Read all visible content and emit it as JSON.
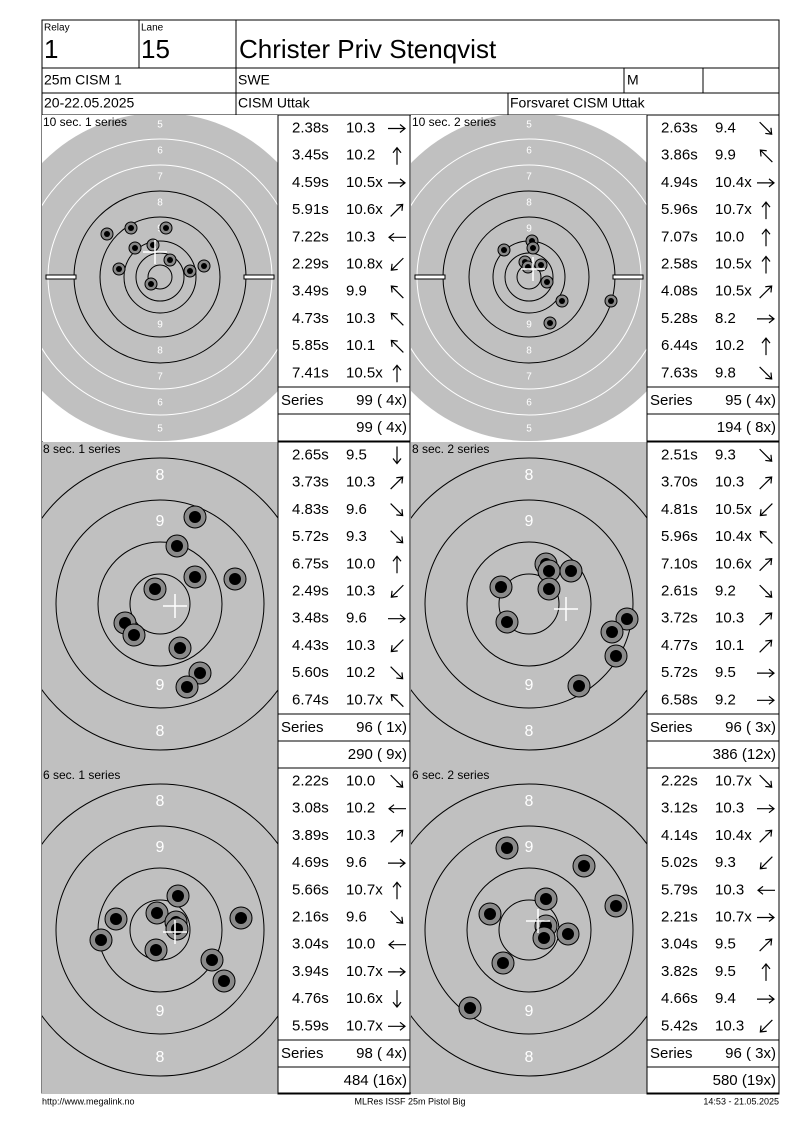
{
  "header": {
    "relay_label": "Relay",
    "relay": "1",
    "lane_label": "Lane",
    "lane": "15",
    "name": "Christer Priv Stenqvist",
    "event": "25m CISM 1",
    "nation": "SWE",
    "gender": "M",
    "dates": "20-22.05.2025",
    "competition": "CISM Uttak",
    "organizer": "Forsvaret CISM Uttak"
  },
  "target": {
    "ring_labels": [
      "8",
      "9"
    ],
    "precision_ring_labels": [
      "5",
      "6",
      "7",
      "8",
      "9"
    ]
  },
  "series": [
    {
      "title": "10 sec. 1 series",
      "shots": [
        {
          "time": "2.38s",
          "score": "10.3"
        },
        {
          "time": "3.45s",
          "score": "10.2"
        },
        {
          "time": "4.59s",
          "score": "10.5x"
        },
        {
          "time": "5.91s",
          "score": "10.6x"
        },
        {
          "time": "7.22s",
          "score": "10.3"
        },
        {
          "time": "2.29s",
          "score": "10.8x"
        },
        {
          "time": "3.49s",
          "score": "9.9"
        },
        {
          "time": "4.73s",
          "score": "10.3"
        },
        {
          "time": "5.85s",
          "score": "10.1"
        },
        {
          "time": "7.41s",
          "score": "10.5x"
        }
      ],
      "series_label": "Series",
      "series_total": "99 ( 4x)",
      "running_total": "99 ( 4x)"
    },
    {
      "title": "10 sec. 2 series",
      "shots": [
        {
          "time": "2.63s",
          "score": "9.4"
        },
        {
          "time": "3.86s",
          "score": "9.9"
        },
        {
          "time": "4.94s",
          "score": "10.4x"
        },
        {
          "time": "5.96s",
          "score": "10.7x"
        },
        {
          "time": "7.07s",
          "score": "10.0"
        },
        {
          "time": "2.58s",
          "score": "10.5x"
        },
        {
          "time": "4.08s",
          "score": "10.5x"
        },
        {
          "time": "5.28s",
          "score": "8.2"
        },
        {
          "time": "6.44s",
          "score": "10.2"
        },
        {
          "time": "7.63s",
          "score": "9.8"
        }
      ],
      "series_label": "Series",
      "series_total": "95 ( 4x)",
      "running_total": "194 ( 8x)"
    },
    {
      "title": "8 sec. 1 series",
      "shots": [
        {
          "time": "2.65s",
          "score": "9.5"
        },
        {
          "time": "3.73s",
          "score": "10.3"
        },
        {
          "time": "4.83s",
          "score": "9.6"
        },
        {
          "time": "5.72s",
          "score": "9.3"
        },
        {
          "time": "6.75s",
          "score": "10.0"
        },
        {
          "time": "2.49s",
          "score": "10.3"
        },
        {
          "time": "3.48s",
          "score": "9.6"
        },
        {
          "time": "4.43s",
          "score": "10.3"
        },
        {
          "time": "5.60s",
          "score": "10.2"
        },
        {
          "time": "6.74s",
          "score": "10.7x"
        }
      ],
      "series_label": "Series",
      "series_total": "96 ( 1x)",
      "running_total": "290 ( 9x)"
    },
    {
      "title": "8 sec. 2 series",
      "shots": [
        {
          "time": "2.51s",
          "score": "9.3"
        },
        {
          "time": "3.70s",
          "score": "10.3"
        },
        {
          "time": "4.81s",
          "score": "10.5x"
        },
        {
          "time": "5.96s",
          "score": "10.4x"
        },
        {
          "time": "7.10s",
          "score": "10.6x"
        },
        {
          "time": "2.61s",
          "score": "9.2"
        },
        {
          "time": "3.72s",
          "score": "10.3"
        },
        {
          "time": "4.77s",
          "score": "10.1"
        },
        {
          "time": "5.72s",
          "score": "9.5"
        },
        {
          "time": "6.58s",
          "score": "9.2"
        }
      ],
      "series_label": "Series",
      "series_total": "96 ( 3x)",
      "running_total": "386 (12x)"
    },
    {
      "title": "6 sec. 1 series",
      "shots": [
        {
          "time": "2.22s",
          "score": "10.0"
        },
        {
          "time": "3.08s",
          "score": "10.2"
        },
        {
          "time": "3.89s",
          "score": "10.3"
        },
        {
          "time": "4.69s",
          "score": "9.6"
        },
        {
          "time": "5.66s",
          "score": "10.7x"
        },
        {
          "time": "2.16s",
          "score": "9.6"
        },
        {
          "time": "3.04s",
          "score": "10.0"
        },
        {
          "time": "3.94s",
          "score": "10.7x"
        },
        {
          "time": "4.76s",
          "score": "10.6x"
        },
        {
          "time": "5.59s",
          "score": "10.7x"
        }
      ],
      "series_label": "Series",
      "series_total": "98 ( 4x)",
      "running_total": "484 (16x)"
    },
    {
      "title": "6 sec. 2 series",
      "shots": [
        {
          "time": "2.22s",
          "score": "10.7x"
        },
        {
          "time": "3.12s",
          "score": "10.3"
        },
        {
          "time": "4.14s",
          "score": "10.4x"
        },
        {
          "time": "5.02s",
          "score": "9.3"
        },
        {
          "time": "5.79s",
          "score": "10.3"
        },
        {
          "time": "2.21s",
          "score": "10.7x"
        },
        {
          "time": "3.04s",
          "score": "9.5"
        },
        {
          "time": "3.82s",
          "score": "9.5"
        },
        {
          "time": "4.66s",
          "score": "9.4"
        },
        {
          "time": "5.42s",
          "score": "10.3"
        }
      ],
      "series_label": "Series",
      "series_total": "96 ( 3x)",
      "running_total": "580 (19x)"
    }
  ],
  "footer": {
    "url": "http://www.megalink.no",
    "software": "MLRes ISSF 25m Pistol Big",
    "timestamp": "14:53 - 21.05.2025"
  }
}
